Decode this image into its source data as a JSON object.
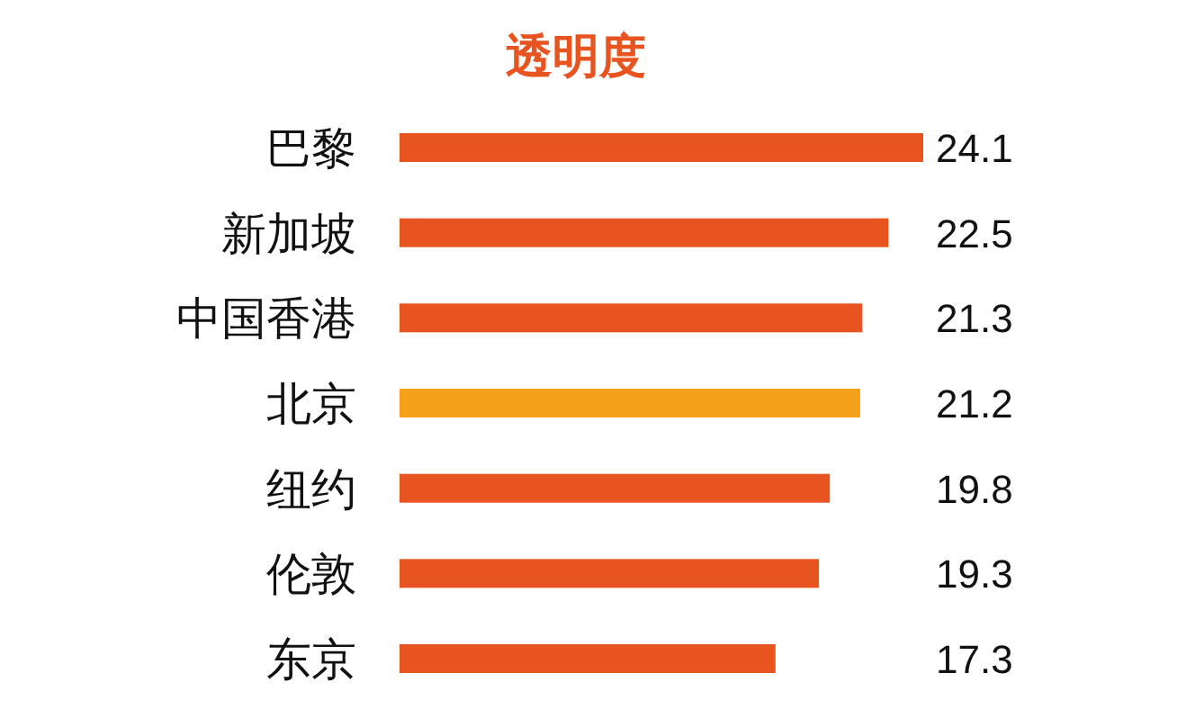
{
  "chart_data": {
    "type": "bar",
    "orientation": "horizontal",
    "title": "透明度",
    "categories": [
      "巴黎",
      "新加坡",
      "中国香港",
      "北京",
      "纽约",
      "伦敦",
      "东京"
    ],
    "values": [
      24.1,
      22.5,
      21.3,
      21.2,
      19.8,
      19.3,
      17.3
    ],
    "colors": [
      "#e85420",
      "#e85420",
      "#e85420",
      "#f5a11a",
      "#e85420",
      "#e85420",
      "#e85420"
    ],
    "data_labels": true
  }
}
